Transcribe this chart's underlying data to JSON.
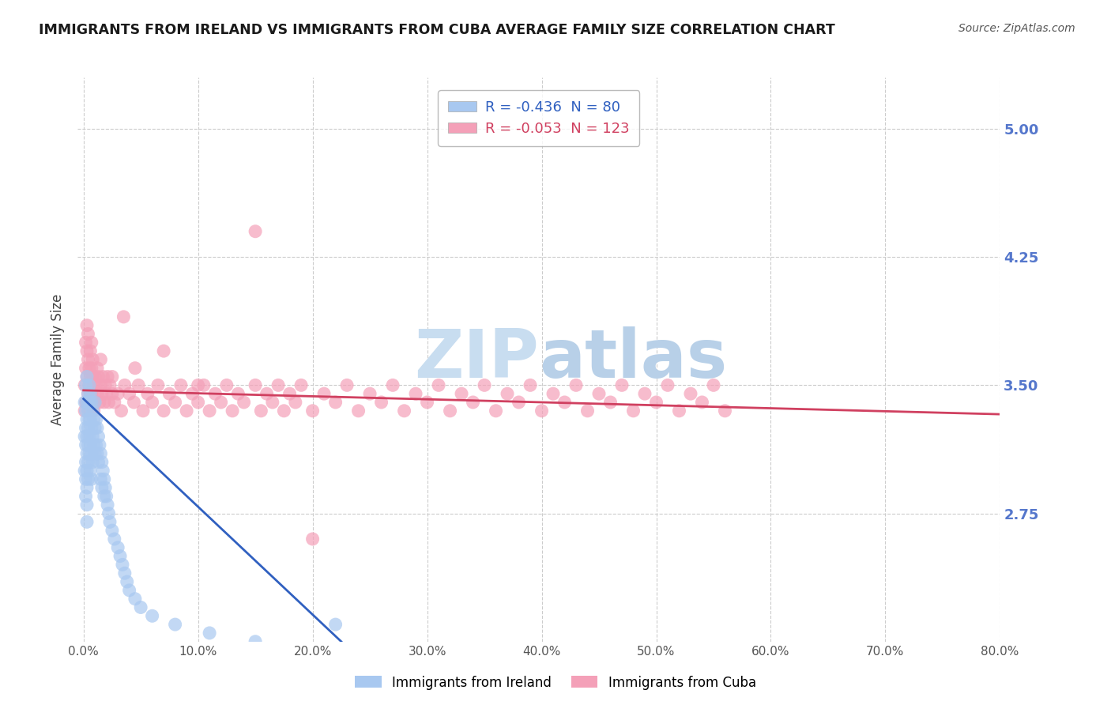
{
  "title": "IMMIGRANTS FROM IRELAND VS IMMIGRANTS FROM CUBA AVERAGE FAMILY SIZE CORRELATION CHART",
  "source": "Source: ZipAtlas.com",
  "ylabel": "Average Family Size",
  "xlim": [
    -0.005,
    0.8
  ],
  "ylim": [
    2.0,
    5.3
  ],
  "yticks": [
    2.75,
    3.5,
    4.25,
    5.0
  ],
  "xticks": [
    0.0,
    0.1,
    0.2,
    0.3,
    0.4,
    0.5,
    0.6,
    0.7,
    0.8
  ],
  "xticklabels": [
    "0.0%",
    "10.0%",
    "20.0%",
    "30.0%",
    "40.0%",
    "50.0%",
    "60.0%",
    "70.0%",
    "80.0%"
  ],
  "ireland_color": "#a8c8f0",
  "cuba_color": "#f4a0b8",
  "ireland_line_color": "#3060c0",
  "cuba_line_color": "#d04060",
  "ireland_R": -0.436,
  "ireland_N": 80,
  "cuba_R": -0.053,
  "cuba_N": 123,
  "legend_label_ireland": "Immigrants from Ireland",
  "legend_label_cuba": "Immigrants from Cuba",
  "axis_tick_color": "#5577cc",
  "watermark_color": "#c8ddf0",
  "background_color": "#ffffff",
  "ireland_x": [
    0.001,
    0.001,
    0.001,
    0.002,
    0.002,
    0.002,
    0.002,
    0.002,
    0.002,
    0.002,
    0.003,
    0.003,
    0.003,
    0.003,
    0.003,
    0.003,
    0.003,
    0.003,
    0.003,
    0.004,
    0.004,
    0.004,
    0.004,
    0.004,
    0.004,
    0.005,
    0.005,
    0.005,
    0.005,
    0.005,
    0.006,
    0.006,
    0.006,
    0.006,
    0.007,
    0.007,
    0.007,
    0.007,
    0.008,
    0.008,
    0.008,
    0.009,
    0.009,
    0.01,
    0.01,
    0.01,
    0.011,
    0.011,
    0.012,
    0.012,
    0.013,
    0.013,
    0.014,
    0.015,
    0.015,
    0.016,
    0.016,
    0.017,
    0.018,
    0.018,
    0.019,
    0.02,
    0.021,
    0.022,
    0.023,
    0.025,
    0.027,
    0.03,
    0.032,
    0.034,
    0.036,
    0.038,
    0.04,
    0.045,
    0.05,
    0.06,
    0.08,
    0.11,
    0.15,
    0.22
  ],
  "ireland_y": [
    3.4,
    3.2,
    3.0,
    3.5,
    3.35,
    3.25,
    3.15,
    3.05,
    2.95,
    2.85,
    3.55,
    3.4,
    3.3,
    3.2,
    3.1,
    3.0,
    2.9,
    2.8,
    2.7,
    3.45,
    3.35,
    3.25,
    3.15,
    3.05,
    2.95,
    3.5,
    3.4,
    3.3,
    3.2,
    3.1,
    3.45,
    3.3,
    3.15,
    3.0,
    3.4,
    3.25,
    3.1,
    2.95,
    3.35,
    3.2,
    3.05,
    3.3,
    3.15,
    3.4,
    3.25,
    3.1,
    3.3,
    3.15,
    3.25,
    3.1,
    3.2,
    3.05,
    3.15,
    3.1,
    2.95,
    3.05,
    2.9,
    3.0,
    2.95,
    2.85,
    2.9,
    2.85,
    2.8,
    2.75,
    2.7,
    2.65,
    2.6,
    2.55,
    2.5,
    2.45,
    2.4,
    2.35,
    2.3,
    2.25,
    2.2,
    2.15,
    2.1,
    2.05,
    2.0,
    2.1
  ],
  "cuba_x": [
    0.001,
    0.001,
    0.002,
    0.002,
    0.003,
    0.003,
    0.003,
    0.004,
    0.004,
    0.005,
    0.005,
    0.005,
    0.006,
    0.006,
    0.007,
    0.007,
    0.008,
    0.008,
    0.009,
    0.009,
    0.01,
    0.01,
    0.011,
    0.012,
    0.013,
    0.014,
    0.015,
    0.016,
    0.017,
    0.018,
    0.019,
    0.02,
    0.021,
    0.022,
    0.023,
    0.025,
    0.027,
    0.03,
    0.033,
    0.036,
    0.04,
    0.044,
    0.048,
    0.052,
    0.056,
    0.06,
    0.065,
    0.07,
    0.075,
    0.08,
    0.085,
    0.09,
    0.095,
    0.1,
    0.105,
    0.11,
    0.115,
    0.12,
    0.125,
    0.13,
    0.135,
    0.14,
    0.15,
    0.155,
    0.16,
    0.165,
    0.17,
    0.175,
    0.18,
    0.185,
    0.19,
    0.2,
    0.21,
    0.22,
    0.23,
    0.24,
    0.25,
    0.26,
    0.27,
    0.28,
    0.29,
    0.3,
    0.31,
    0.32,
    0.33,
    0.34,
    0.35,
    0.36,
    0.37,
    0.38,
    0.39,
    0.4,
    0.41,
    0.42,
    0.43,
    0.44,
    0.45,
    0.46,
    0.47,
    0.48,
    0.49,
    0.5,
    0.51,
    0.52,
    0.53,
    0.54,
    0.55,
    0.56,
    0.002,
    0.004,
    0.006,
    0.008,
    0.012,
    0.035,
    0.15,
    0.003,
    0.007,
    0.015,
    0.025,
    0.045,
    0.07,
    0.1,
    0.2
  ],
  "cuba_y": [
    3.5,
    3.35,
    3.6,
    3.4,
    3.7,
    3.55,
    3.4,
    3.65,
    3.45,
    3.6,
    3.5,
    3.35,
    3.55,
    3.4,
    3.6,
    3.45,
    3.55,
    3.4,
    3.5,
    3.35,
    3.55,
    3.4,
    3.5,
    3.45,
    3.55,
    3.4,
    3.5,
    3.45,
    3.55,
    3.4,
    3.5,
    3.45,
    3.55,
    3.4,
    3.5,
    3.45,
    3.4,
    3.45,
    3.35,
    3.5,
    3.45,
    3.4,
    3.5,
    3.35,
    3.45,
    3.4,
    3.5,
    3.35,
    3.45,
    3.4,
    3.5,
    3.35,
    3.45,
    3.4,
    3.5,
    3.35,
    3.45,
    3.4,
    3.5,
    3.35,
    3.45,
    3.4,
    3.5,
    3.35,
    3.45,
    3.4,
    3.5,
    3.35,
    3.45,
    3.4,
    3.5,
    3.35,
    3.45,
    3.4,
    3.5,
    3.35,
    3.45,
    3.4,
    3.5,
    3.35,
    3.45,
    3.4,
    3.5,
    3.35,
    3.45,
    3.4,
    3.5,
    3.35,
    3.45,
    3.4,
    3.5,
    3.35,
    3.45,
    3.4,
    3.5,
    3.35,
    3.45,
    3.4,
    3.5,
    3.35,
    3.45,
    3.4,
    3.5,
    3.35,
    3.45,
    3.4,
    3.5,
    3.35,
    3.75,
    3.8,
    3.7,
    3.65,
    3.6,
    3.9,
    4.4,
    3.85,
    3.75,
    3.65,
    3.55,
    3.6,
    3.7,
    3.5,
    2.6
  ],
  "ireland_trend_x": [
    0.0,
    0.225
  ],
  "ireland_trend_y": [
    3.42,
    2.0
  ],
  "cuba_trend_x": [
    0.0,
    0.8
  ],
  "cuba_trend_y": [
    3.47,
    3.33
  ]
}
